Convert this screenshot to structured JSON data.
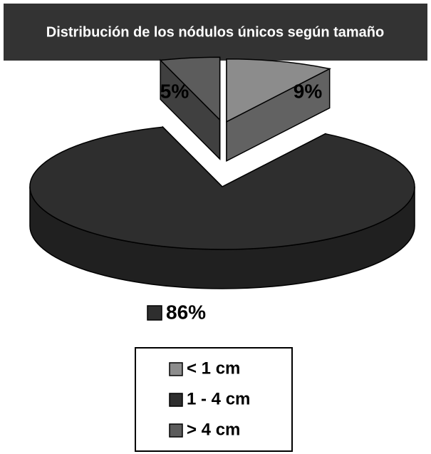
{
  "chart_data": {
    "type": "pie",
    "title": "Distribución de los nódulos únicos según tamaño",
    "categories": [
      "< 1 cm",
      "1 - 4 cm",
      "> 4 cm"
    ],
    "values": [
      9,
      86,
      5
    ],
    "value_labels": [
      "9%",
      "86%",
      "5%"
    ],
    "colors": [
      "#8c8c8c",
      "#2e2e2e",
      "#5c5c5c"
    ],
    "exploded": [
      true,
      false,
      true
    ],
    "legend": "bottom"
  }
}
